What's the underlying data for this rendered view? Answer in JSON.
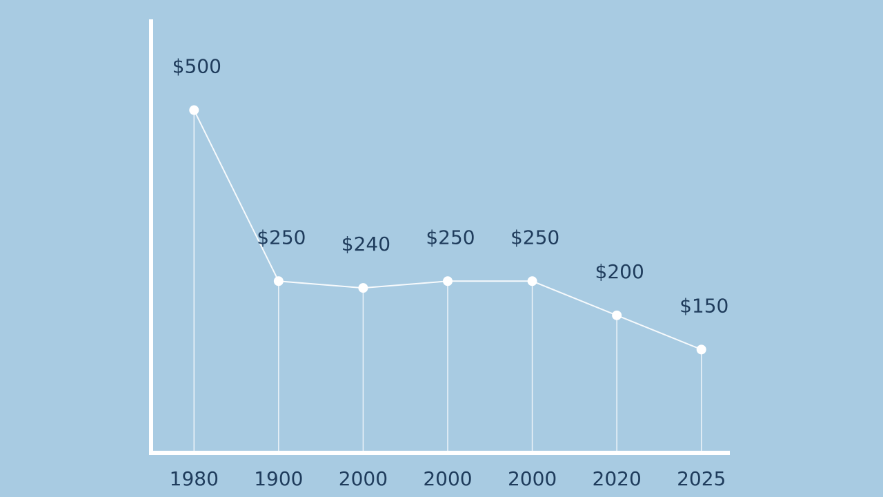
{
  "chart_data": {
    "type": "line",
    "categories": [
      "1980",
      "1900",
      "2000",
      "2000",
      "2000",
      "2020",
      "2025"
    ],
    "values": [
      500,
      250,
      240,
      250,
      250,
      200,
      150
    ],
    "value_labels": [
      "$500",
      "$250",
      "$240",
      "$250",
      "$250",
      "$200",
      "$150"
    ],
    "color": "#ffffff",
    "ylim": [
      0,
      550
    ]
  }
}
